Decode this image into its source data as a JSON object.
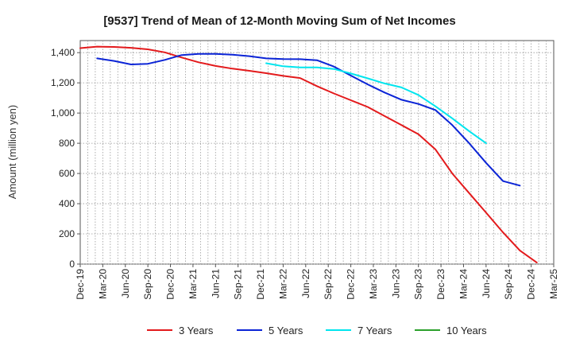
{
  "chart_data": {
    "type": "line",
    "title": "[9537]  Trend of Mean of 12-Month Moving Sum of Net Incomes",
    "xlabel": "",
    "ylabel": "Amount (million yen)",
    "ylim": [
      0,
      1480
    ],
    "yticks": [
      0,
      200,
      400,
      600,
      800,
      1000,
      1200,
      1400
    ],
    "ytick_labels": [
      "0",
      "200",
      "400",
      "600",
      "800",
      "1,000",
      "1,200",
      "1,400"
    ],
    "x_tick_labels": [
      "Dec-19",
      "Mar-20",
      "Jun-20",
      "Sep-20",
      "Dec-20",
      "Mar-21",
      "Jun-21",
      "Sep-21",
      "Dec-21",
      "Mar-22",
      "Jun-22",
      "Sep-22",
      "Dec-22",
      "Mar-23",
      "Jun-23",
      "Sep-23",
      "Dec-23",
      "Mar-24",
      "Jun-24",
      "Sep-24",
      "Dec-24",
      "Mar-25"
    ],
    "grid": true,
    "legend_position": "bottom",
    "series": [
      {
        "name": "3 Years",
        "color": "#e31a1c",
        "points": [
          [
            0,
            1430
          ],
          [
            1,
            1440
          ],
          [
            2,
            1438
          ],
          [
            3,
            1432
          ],
          [
            4,
            1422
          ],
          [
            5,
            1402
          ],
          [
            6,
            1368
          ],
          [
            7,
            1336
          ],
          [
            8,
            1312
          ],
          [
            9,
            1294
          ],
          [
            10,
            1280
          ],
          [
            11,
            1264
          ],
          [
            12,
            1246
          ],
          [
            13,
            1232
          ],
          [
            14,
            1178
          ],
          [
            15,
            1130
          ],
          [
            16,
            1085
          ],
          [
            17,
            1040
          ],
          [
            18,
            980
          ],
          [
            19,
            920
          ],
          [
            20,
            860
          ],
          [
            21,
            760
          ],
          [
            22,
            600
          ],
          [
            23,
            470
          ],
          [
            24,
            340
          ],
          [
            25,
            210
          ],
          [
            26,
            90
          ],
          [
            27,
            10
          ]
        ]
      },
      {
        "name": "5 Years",
        "color": "#0b24d6",
        "points": [
          [
            1,
            1362
          ],
          [
            2,
            1345
          ],
          [
            3,
            1322
          ],
          [
            4,
            1326
          ],
          [
            5,
            1352
          ],
          [
            6,
            1384
          ],
          [
            7,
            1392
          ],
          [
            8,
            1392
          ],
          [
            9,
            1387
          ],
          [
            10,
            1377
          ],
          [
            11,
            1362
          ],
          [
            12,
            1358
          ],
          [
            13,
            1357
          ],
          [
            14,
            1350
          ],
          [
            15,
            1308
          ],
          [
            16,
            1248
          ],
          [
            17,
            1190
          ],
          [
            18,
            1136
          ],
          [
            19,
            1088
          ],
          [
            20,
            1060
          ],
          [
            21,
            1020
          ],
          [
            22,
            920
          ],
          [
            23,
            800
          ],
          [
            24,
            670
          ],
          [
            25,
            550
          ],
          [
            26,
            520
          ]
        ]
      },
      {
        "name": "7 Years",
        "color": "#00e5ee",
        "points": [
          [
            11,
            1330
          ],
          [
            12,
            1310
          ],
          [
            13,
            1302
          ],
          [
            14,
            1302
          ],
          [
            15,
            1292
          ],
          [
            16,
            1262
          ],
          [
            17,
            1230
          ],
          [
            18,
            1196
          ],
          [
            19,
            1170
          ],
          [
            20,
            1120
          ],
          [
            21,
            1045
          ],
          [
            22,
            965
          ],
          [
            23,
            880
          ],
          [
            24,
            800
          ]
        ]
      },
      {
        "name": "10 Years",
        "color": "#2ca02c",
        "points": []
      }
    ]
  }
}
